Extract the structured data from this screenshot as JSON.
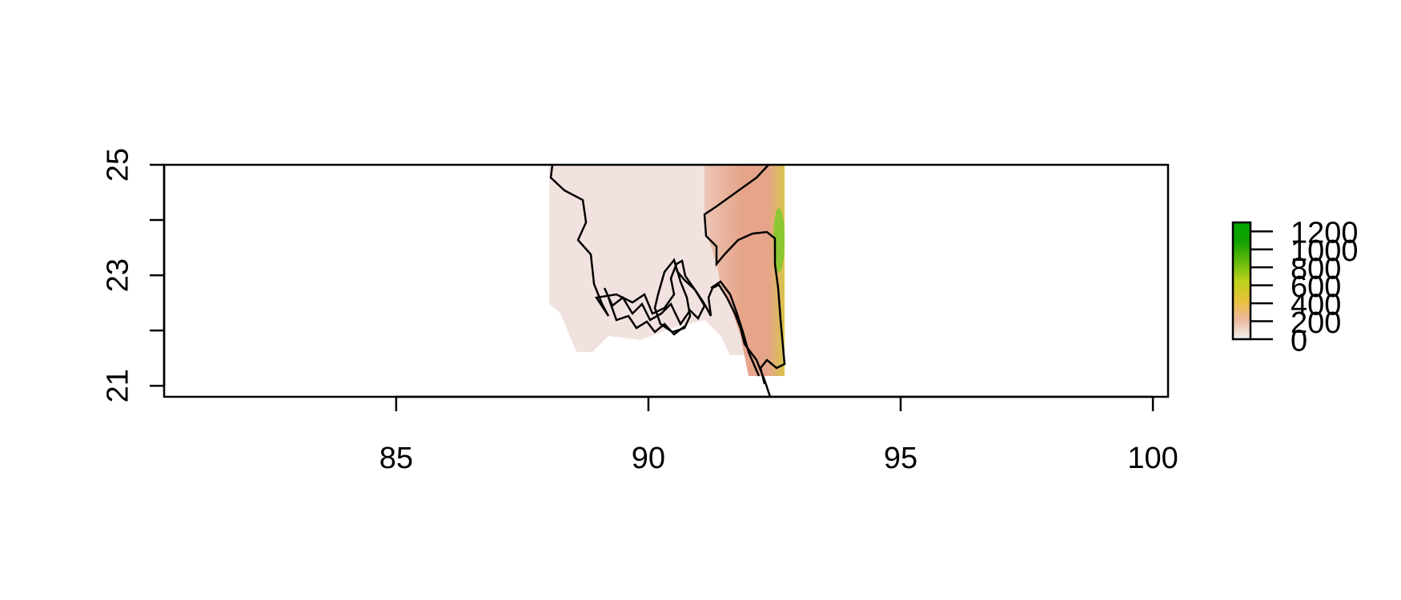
{
  "chart_data": {
    "type": "heatmap",
    "title": "",
    "xlabel": "",
    "ylabel": "",
    "xlim": [
      80.4,
      100.3
    ],
    "ylim": [
      20.8,
      25.0
    ],
    "x_ticks": [
      {
        "value": 85,
        "label": "85"
      },
      {
        "value": 90,
        "label": "90"
      },
      {
        "value": 95,
        "label": "95"
      },
      {
        "value": 100,
        "label": "100"
      }
    ],
    "y_ticks": [
      {
        "value": 21,
        "label": "21"
      },
      {
        "value": 22,
        "label": ""
      },
      {
        "value": 23,
        "label": "23"
      },
      {
        "value": 24,
        "label": ""
      },
      {
        "value": 25,
        "label": "25"
      }
    ],
    "raster_extent": {
      "xmin": 88.05,
      "xmax": 92.7,
      "ymin": 20.8,
      "ymax": 25.0
    },
    "legend": {
      "placement": "right",
      "range": [
        0,
        1300
      ],
      "ticks": [
        {
          "value": 0,
          "label": "0"
        },
        {
          "value": 200,
          "label": "200"
        },
        {
          "value": 400,
          "label": "400"
        },
        {
          "value": 600,
          "label": "600"
        },
        {
          "value": 800,
          "label": "800"
        },
        {
          "value": 1000,
          "label": "1000"
        },
        {
          "value": 1200,
          "label": "1200"
        }
      ],
      "colors": [
        "#f2f2f2",
        "#eeb99f",
        "#e8c13a",
        "#bbd21a",
        "#62b80c",
        "#12a101",
        "#00a600"
      ]
    }
  },
  "colors": {
    "lowland": "#f2e2df",
    "eastern_low": "#ecc6b6",
    "eastern_mid": "#e6a58a",
    "eastern_high": "#d8c44a",
    "peak": "#8cc832",
    "outline": "#000000"
  }
}
